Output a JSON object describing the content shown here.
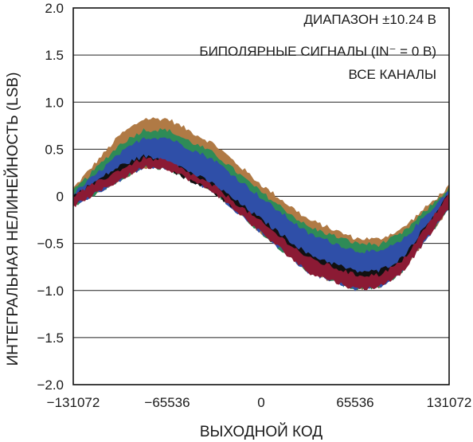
{
  "chart_data": {
    "type": "area",
    "xlabel": "ВЫХОДНОЙ КОД",
    "ylabel": "ИНТЕГРАЛЬНАЯ НЕЛИНЕЙНОСТЬ (LSB)",
    "xlim": [
      -131072,
      131072
    ],
    "ylim": [
      -2.0,
      2.0
    ],
    "x_ticks": [
      -131072,
      -65536,
      0,
      65536,
      131072
    ],
    "x_tick_labels": [
      "−131072",
      "−65536",
      "0",
      "65536",
      "131072"
    ],
    "y_ticks": [
      2.0,
      1.5,
      1.0,
      0.5,
      0,
      -0.5,
      -1.0,
      -1.5,
      -2.0
    ],
    "y_tick_labels": [
      "2.0",
      "1.5",
      "1.0",
      "0.5",
      "0",
      "−0.5",
      "−1.0",
      "−1.5",
      "−2.0"
    ],
    "grid": true,
    "annotations": [
      "ДИАПАЗОН ±10.24 В",
      "БИПОЛЯРНЫЕ СИГНАЛЫ (IN⁻ = 0 В)",
      "ВСЕ КАНАЛЫ"
    ],
    "series": [
      {
        "color": "#b07a45",
        "x": [
          -131072,
          -98304,
          -81920,
          -65536,
          -32768,
          0,
          32768,
          65536,
          81920,
          98304,
          131072
        ],
        "upper": [
          0.08,
          0.65,
          0.82,
          0.82,
          0.55,
          0.12,
          -0.25,
          -0.45,
          -0.46,
          -0.35,
          0.1
        ],
        "lower": [
          -0.1,
          0.18,
          0.32,
          0.3,
          0.05,
          -0.38,
          -0.8,
          -0.98,
          -0.96,
          -0.8,
          -0.12
        ]
      },
      {
        "color": "#2e8b57",
        "x": [
          -131072,
          -98304,
          -81920,
          -65536,
          -32768,
          0,
          32768,
          65536,
          81920,
          98304,
          131072
        ],
        "upper": [
          0.05,
          0.55,
          0.7,
          0.7,
          0.45,
          0.04,
          -0.33,
          -0.5,
          -0.52,
          -0.4,
          0.08
        ],
        "lower": [
          -0.1,
          0.18,
          0.32,
          0.3,
          0.05,
          -0.38,
          -0.8,
          -0.98,
          -0.96,
          -0.8,
          -0.12
        ]
      },
      {
        "color": "#2f4fa8",
        "x": [
          -131072,
          -98304,
          -81920,
          -65536,
          -32768,
          0,
          32768,
          65536,
          81920,
          98304,
          131072
        ],
        "upper": [
          0.02,
          0.45,
          0.62,
          0.62,
          0.38,
          -0.02,
          -0.4,
          -0.58,
          -0.6,
          -0.48,
          0.06
        ],
        "lower": [
          -0.1,
          0.18,
          0.32,
          0.3,
          0.05,
          -0.38,
          -0.8,
          -0.98,
          -0.96,
          -0.8,
          -0.12
        ]
      },
      {
        "color": "#111111",
        "x": [
          -131072,
          -98304,
          -81920,
          -65536,
          -32768,
          0,
          32768,
          65536,
          81920,
          98304,
          131072
        ],
        "upper": [
          0.0,
          0.32,
          0.42,
          0.38,
          0.12,
          -0.25,
          -0.62,
          -0.8,
          -0.8,
          -0.66,
          0.02
        ],
        "lower": [
          -0.08,
          0.24,
          0.34,
          0.3,
          0.04,
          -0.33,
          -0.7,
          -0.88,
          -0.88,
          -0.74,
          -0.06
        ]
      },
      {
        "color": "#8b1a34",
        "x": [
          -131072,
          -98304,
          -81920,
          -65536,
          -32768,
          0,
          32768,
          65536,
          81920,
          98304,
          131072
        ],
        "upper": [
          0.0,
          0.28,
          0.4,
          0.37,
          0.1,
          -0.28,
          -0.66,
          -0.84,
          -0.84,
          -0.7,
          0.02
        ],
        "lower": [
          -0.1,
          0.18,
          0.32,
          0.3,
          0.05,
          -0.38,
          -0.8,
          -0.98,
          -0.96,
          -0.8,
          -0.12
        ]
      }
    ]
  }
}
